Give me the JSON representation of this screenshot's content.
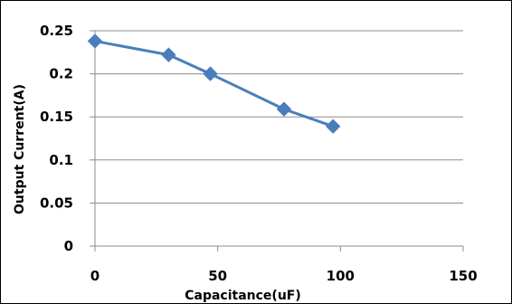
{
  "chart_data": {
    "type": "line",
    "title": "",
    "xlabel": "Capacitance(uF)",
    "ylabel": "Output Current(A)",
    "xlim": [
      0,
      150
    ],
    "ylim": [
      0,
      0.25
    ],
    "x_ticks": [
      "0",
      "50",
      "100",
      "150"
    ],
    "y_ticks": [
      "0",
      "0.05",
      "0.1",
      "0.15",
      "0.2",
      "0.25"
    ],
    "grid": "horizontal",
    "legend": "none",
    "series": [
      {
        "color": "#4a7ebb",
        "marker": "diamond",
        "x": [
          0,
          30,
          47,
          77,
          97
        ],
        "y": [
          0.238,
          0.222,
          0.2,
          0.159,
          0.139
        ]
      }
    ]
  }
}
